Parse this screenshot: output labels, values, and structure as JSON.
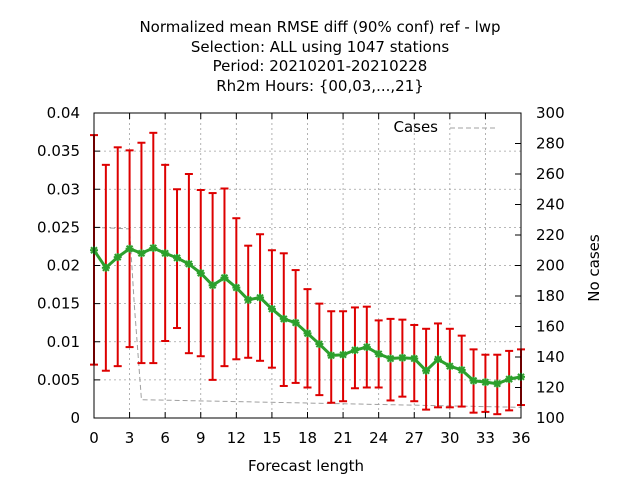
{
  "chart_data": {
    "type": "line",
    "title_lines": [
      "Normalized mean RMSE diff (90% conf) ref - lwp",
      "Selection: ALL using  1047 stations",
      "Period: 20210201-20210228",
      "Rh2m   Hours: {00,03,...,21}"
    ],
    "xlabel": "Forecast length",
    "ylabel": "",
    "y2label": "No cases",
    "xlim": [
      0,
      36
    ],
    "ylim": [
      0,
      0.04
    ],
    "y2lim": [
      100,
      300
    ],
    "x_ticks": [
      0,
      3,
      6,
      9,
      12,
      15,
      18,
      21,
      24,
      27,
      30,
      33,
      36
    ],
    "y_ticks": [
      0,
      0.005,
      0.01,
      0.015,
      0.02,
      0.025,
      0.03,
      0.035,
      0.04
    ],
    "y_tick_labels": [
      "0",
      "0.005",
      "0.01",
      "0.015",
      "0.02",
      "0.025",
      "0.03",
      "0.035",
      "0.04"
    ],
    "y2_ticks": [
      100,
      120,
      140,
      160,
      180,
      200,
      220,
      240,
      260,
      280,
      300
    ],
    "grid": true,
    "legend": [
      {
        "label": "Cases",
        "position": "top-right"
      }
    ],
    "colors": {
      "line": "#2ca02c",
      "errorbar": "#dd0000",
      "cases": "#a0a0a0"
    },
    "series": [
      {
        "name": "RMSE diff",
        "x": [
          0,
          1,
          2,
          3,
          4,
          5,
          6,
          7,
          8,
          9,
          10,
          11,
          12,
          13,
          14,
          15,
          16,
          17,
          18,
          19,
          20,
          21,
          22,
          23,
          24,
          25,
          26,
          27,
          28,
          29,
          30,
          31,
          32,
          33,
          34,
          35,
          36
        ],
        "values": [
          0.022,
          0.0197,
          0.0211,
          0.0222,
          0.0216,
          0.0223,
          0.0216,
          0.021,
          0.0202,
          0.019,
          0.0174,
          0.0184,
          0.0171,
          0.0155,
          0.0158,
          0.0143,
          0.013,
          0.0125,
          0.0111,
          0.0097,
          0.0082,
          0.0083,
          0.0089,
          0.0093,
          0.0084,
          0.0078,
          0.0079,
          0.0078,
          0.0062,
          0.0077,
          0.0068,
          0.0063,
          0.0049,
          0.0047,
          0.0045,
          0.0051,
          0.0054
        ],
        "err_low": [
          0.007,
          0.0062,
          0.0068,
          0.0093,
          0.0072,
          0.0072,
          0.0101,
          0.0118,
          0.0085,
          0.0081,
          0.005,
          0.0068,
          0.0077,
          0.0079,
          0.0075,
          0.0066,
          0.0042,
          0.0046,
          0.004,
          0.003,
          0.002,
          0.0022,
          0.0039,
          0.004,
          0.004,
          0.0023,
          0.0028,
          0.0022,
          0.0011,
          0.0014,
          0.0014,
          0.0015,
          0.0007,
          0.0008,
          0.0005,
          0.001,
          0.0017
        ],
        "err_high": [
          0.0371,
          0.0332,
          0.0355,
          0.0351,
          0.0361,
          0.0374,
          0.0332,
          0.03,
          0.032,
          0.0299,
          0.0295,
          0.0301,
          0.0262,
          0.0226,
          0.0241,
          0.022,
          0.0216,
          0.0194,
          0.0169,
          0.015,
          0.014,
          0.014,
          0.0145,
          0.0146,
          0.0128,
          0.013,
          0.0129,
          0.0122,
          0.0117,
          0.0124,
          0.0117,
          0.0108,
          0.009,
          0.0083,
          0.0083,
          0.0088,
          0.009
        ]
      },
      {
        "name": "Cases",
        "axis": "y2",
        "x": [
          0,
          3,
          3.4,
          4,
          36
        ],
        "values": [
          225,
          224,
          174,
          112,
          107
        ]
      }
    ]
  }
}
